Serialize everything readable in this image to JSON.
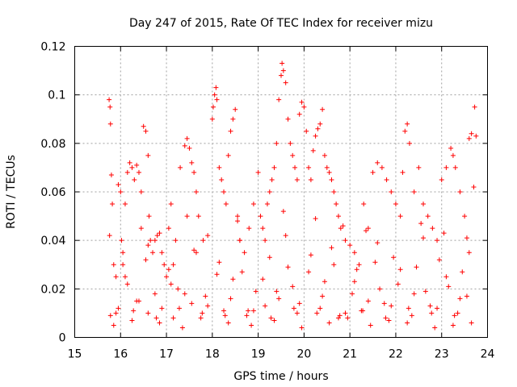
{
  "chart_data": {
    "type": "scatter",
    "title": "Day 247 of 2015, Rate Of TEC Index for receiver mizu",
    "xlabel": "GPS time / hours",
    "ylabel": "ROTI / TECUs",
    "xlim": [
      15,
      24
    ],
    "ylim": [
      0,
      0.12
    ],
    "x_ticks": [
      15,
      16,
      17,
      18,
      19,
      20,
      21,
      22,
      23,
      24
    ],
    "y_ticks": [
      0,
      0.02,
      0.04,
      0.06,
      0.08,
      0.1,
      0.12
    ],
    "x_tick_labels": [
      "15",
      "16",
      "17",
      "18",
      "19",
      "20",
      "21",
      "22",
      "23",
      "24"
    ],
    "y_tick_labels": [
      "0",
      "0.02",
      "0.04",
      "0.06",
      "0.08",
      "0.1",
      "0.12"
    ],
    "grid": true,
    "marker": "+",
    "color": "#ff0000",
    "series": [
      {
        "name": "ROTI",
        "x": [
          15.75,
          15.77,
          15.78,
          15.76,
          15.8,
          15.82,
          15.85,
          15.9,
          15.95,
          16.0,
          16.02,
          16.05,
          16.1,
          16.15,
          16.2,
          16.25,
          16.3,
          16.35,
          16.4,
          16.45,
          16.5,
          16.55,
          16.6,
          16.62,
          16.65,
          16.7,
          16.75,
          16.8,
          16.85,
          16.9,
          16.95,
          17.0,
          17.05,
          17.1,
          17.15,
          17.2,
          17.3,
          17.4,
          17.45,
          17.5,
          17.55,
          17.6,
          17.65,
          17.7,
          17.8,
          17.9,
          18.0,
          18.02,
          18.05,
          18.08,
          18.1,
          18.15,
          18.2,
          18.25,
          18.3,
          18.35,
          18.4,
          18.45,
          18.5,
          18.55,
          18.6,
          18.7,
          18.8,
          18.9,
          19.0,
          19.05,
          19.1,
          19.15,
          19.2,
          19.25,
          19.3,
          19.35,
          19.4,
          19.45,
          19.5,
          19.52,
          19.55,
          19.6,
          19.65,
          19.7,
          19.75,
          19.8,
          19.85,
          19.9,
          19.95,
          20.0,
          20.05,
          20.1,
          20.15,
          20.2,
          20.25,
          20.3,
          20.35,
          20.4,
          20.45,
          20.5,
          20.55,
          20.6,
          20.65,
          20.7,
          20.75,
          20.8,
          20.9,
          21.0,
          21.1,
          21.2,
          21.3,
          21.4,
          21.5,
          21.6,
          21.7,
          21.8,
          21.9,
          22.0,
          22.1,
          22.15,
          22.2,
          22.25,
          22.3,
          22.4,
          22.5,
          22.6,
          22.7,
          22.8,
          22.9,
          23.0,
          23.1,
          23.2,
          23.25,
          23.3,
          23.4,
          23.5,
          23.6,
          23.65,
          23.7,
          23.72,
          23.75,
          15.95,
          16.35,
          16.6,
          17.15,
          17.55,
          18.25,
          18.75,
          19.15,
          19.45,
          19.85,
          20.35,
          20.75,
          21.25,
          21.75,
          22.35,
          22.75,
          23.35,
          16.15,
          16.75,
          17.25,
          17.85,
          18.45,
          18.95,
          19.75,
          20.45,
          21.05,
          21.65,
          22.05,
          22.65,
          23.15,
          23.55,
          16.05,
          16.55,
          17.05,
          17.65,
          18.15,
          18.65,
          19.25,
          19.65,
          20.15,
          20.65,
          21.15,
          21.55,
          21.95,
          22.45,
          22.95,
          23.45,
          15.85,
          16.25,
          16.85,
          17.35,
          17.75,
          18.35,
          18.85,
          19.35,
          19.95,
          20.55,
          20.95,
          21.45,
          21.85,
          22.25,
          22.85,
          23.25,
          23.65,
          16.45,
          17.45,
          18.55,
          19.55,
          20.25,
          20.85,
          21.35,
          22.55,
          23.05,
          23.55,
          15.9,
          16.4,
          16.9,
          17.4,
          17.9,
          18.4,
          18.9,
          19.4,
          19.9,
          20.4,
          20.9,
          21.4,
          21.9,
          22.4,
          22.9,
          23.4,
          16.1,
          16.6,
          17.1,
          17.6,
          18.1,
          18.6,
          19.1,
          19.6,
          20.1,
          20.6,
          21.1,
          21.6,
          22.1,
          22.6,
          23.1,
          23.6,
          15.78,
          16.28,
          16.78,
          17.28,
          17.78,
          18.28,
          18.78,
          19.28,
          19.78,
          20.28,
          20.78,
          21.28,
          21.78,
          22.28,
          22.78,
          23.28
        ],
        "y": [
          0.098,
          0.095,
          0.088,
          0.042,
          0.067,
          0.055,
          0.03,
          0.025,
          0.063,
          0.06,
          0.04,
          0.035,
          0.055,
          0.068,
          0.072,
          0.07,
          0.065,
          0.071,
          0.068,
          0.06,
          0.087,
          0.085,
          0.075,
          0.05,
          0.04,
          0.035,
          0.04,
          0.042,
          0.043,
          0.035,
          0.03,
          0.025,
          0.045,
          0.055,
          0.03,
          0.04,
          0.07,
          0.079,
          0.082,
          0.078,
          0.072,
          0.068,
          0.06,
          0.05,
          0.04,
          0.042,
          0.09,
          0.095,
          0.1,
          0.103,
          0.098,
          0.07,
          0.065,
          0.06,
          0.055,
          0.075,
          0.085,
          0.09,
          0.094,
          0.05,
          0.04,
          0.035,
          0.045,
          0.055,
          0.068,
          0.05,
          0.045,
          0.04,
          0.055,
          0.06,
          0.065,
          0.07,
          0.08,
          0.098,
          0.108,
          0.113,
          0.11,
          0.105,
          0.09,
          0.08,
          0.075,
          0.07,
          0.065,
          0.092,
          0.097,
          0.095,
          0.085,
          0.07,
          0.065,
          0.077,
          0.083,
          0.086,
          0.088,
          0.094,
          0.075,
          0.07,
          0.068,
          0.065,
          0.06,
          0.055,
          0.05,
          0.045,
          0.04,
          0.038,
          0.035,
          0.03,
          0.055,
          0.045,
          0.068,
          0.072,
          0.07,
          0.065,
          0.06,
          0.055,
          0.05,
          0.068,
          0.085,
          0.088,
          0.08,
          0.06,
          0.07,
          0.055,
          0.05,
          0.045,
          0.04,
          0.065,
          0.07,
          0.078,
          0.075,
          0.07,
          0.06,
          0.05,
          0.082,
          0.084,
          0.062,
          0.095,
          0.083,
          0.012,
          0.015,
          0.01,
          0.008,
          0.014,
          0.011,
          0.009,
          0.013,
          0.016,
          0.01,
          0.012,
          0.008,
          0.011,
          0.014,
          0.009,
          0.013,
          0.01,
          0.022,
          0.018,
          0.02,
          0.017,
          0.024,
          0.019,
          0.021,
          0.023,
          0.018,
          0.02,
          0.022,
          0.019,
          0.021,
          0.017,
          0.03,
          0.032,
          0.028,
          0.035,
          0.031,
          0.027,
          0.033,
          0.029,
          0.034,
          0.03,
          0.028,
          0.031,
          0.033,
          0.029,
          0.032,
          0.027,
          0.005,
          0.007,
          0.006,
          0.004,
          0.008,
          0.006,
          0.005,
          0.007,
          0.004,
          0.006,
          0.008,
          0.005,
          0.007,
          0.006,
          0.004,
          0.005,
          0.006,
          0.045,
          0.05,
          0.048,
          0.052,
          0.049,
          0.046,
          0.044,
          0.047,
          0.043,
          0.041,
          0.01,
          0.015,
          0.012,
          0.018,
          0.013,
          0.016,
          0.011,
          0.019,
          0.014,
          0.017,
          0.01,
          0.015,
          0.013,
          0.018,
          0.012,
          0.016,
          0.025,
          0.038,
          0.022,
          0.036,
          0.026,
          0.04,
          0.024,
          0.042,
          0.027,
          0.037,
          0.023,
          0.039,
          0.028,
          0.041,
          0.025,
          0.035,
          0.009,
          0.011,
          0.008,
          0.012,
          0.01,
          0.009,
          0.011,
          0.008,
          0.012,
          0.01,
          0.009,
          0.011,
          0.008,
          0.012,
          0.01,
          0.009
        ]
      }
    ]
  }
}
